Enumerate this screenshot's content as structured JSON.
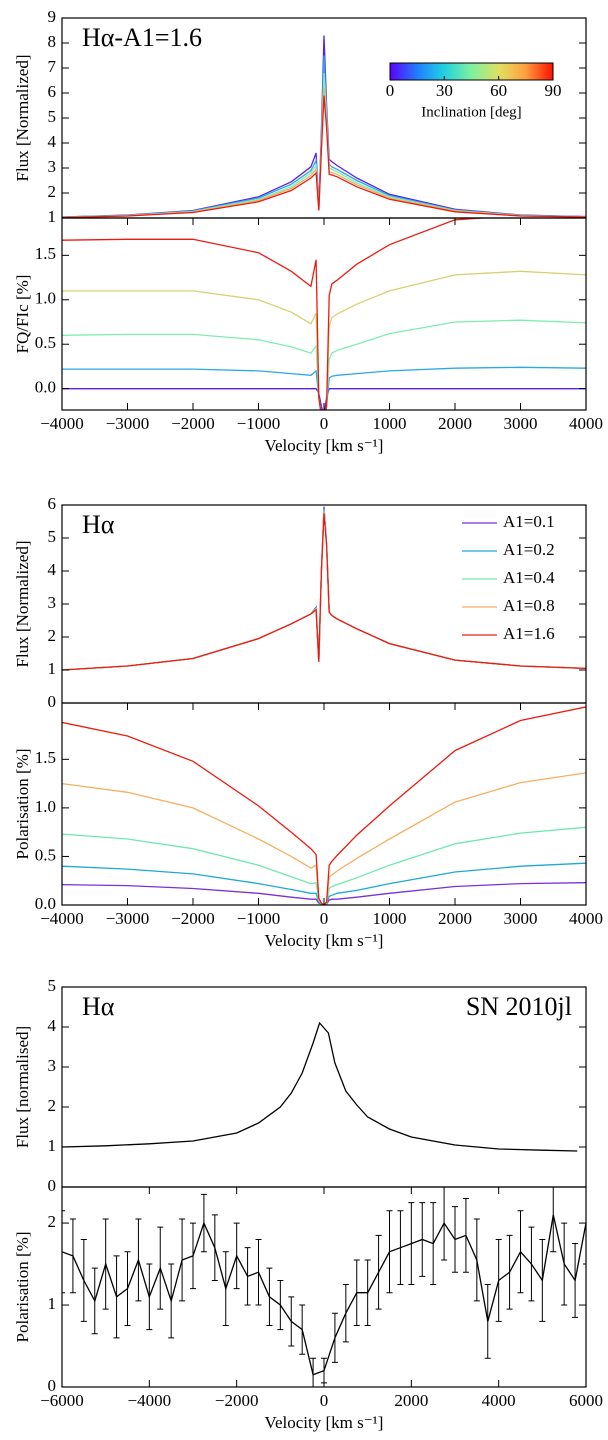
{
  "chart_data": [
    {
      "type": "line",
      "ylabel": "Flux [Normalized]",
      "annotations": [
        {
          "text": "Hα-A1=1.6",
          "loc": "upper left"
        }
      ],
      "xlim": [
        -4000,
        4000
      ],
      "ylim": [
        1,
        9
      ],
      "yticks": [
        1,
        2,
        3,
        4,
        5,
        6,
        7,
        8,
        9
      ],
      "x": [
        -4000,
        -3000,
        -2000,
        -1000,
        -500,
        -200,
        -120,
        -80,
        -40,
        0,
        40,
        80,
        120,
        200,
        500,
        1000,
        2000,
        3000,
        4000
      ],
      "series": [
        {
          "color": "#5a1ef0",
          "values": [
            1.04,
            1.12,
            1.3,
            1.85,
            2.45,
            3.05,
            3.6,
            1.4,
            4.5,
            8.3,
            5.5,
            3.35,
            3.25,
            3.1,
            2.6,
            1.95,
            1.35,
            1.12,
            1.06
          ]
        },
        {
          "color": "#2aa8e8",
          "values": [
            1.04,
            1.11,
            1.28,
            1.8,
            2.35,
            2.9,
            3.3,
            1.35,
            4.2,
            7.5,
            5.2,
            3.15,
            3.05,
            2.95,
            2.5,
            1.9,
            1.32,
            1.11,
            1.05
          ]
        },
        {
          "color": "#7eeeb0",
          "values": [
            1.03,
            1.1,
            1.26,
            1.75,
            2.25,
            2.8,
            3.1,
            1.3,
            4.0,
            6.8,
            5.0,
            3.0,
            2.95,
            2.85,
            2.4,
            1.85,
            1.3,
            1.1,
            1.05
          ]
        },
        {
          "color": "#f0b060",
          "values": [
            1.03,
            1.09,
            1.24,
            1.7,
            2.18,
            2.7,
            2.95,
            1.3,
            3.8,
            6.2,
            4.8,
            2.85,
            2.82,
            2.75,
            2.33,
            1.8,
            1.28,
            1.09,
            1.04
          ]
        },
        {
          "color": "#ee1a10",
          "values": [
            1.02,
            1.08,
            1.22,
            1.65,
            2.1,
            2.6,
            2.8,
            1.3,
            3.7,
            5.9,
            4.6,
            2.75,
            2.72,
            2.65,
            2.25,
            1.75,
            1.25,
            1.08,
            1.04
          ]
        }
      ],
      "colorbar": {
        "label": "Inclination [deg]",
        "lim": [
          0,
          90
        ],
        "ticks": [
          0,
          30,
          60,
          90
        ]
      }
    },
    {
      "type": "line",
      "ylabel": "FQ/FIc [%]",
      "xlabel": "Velocity [km s⁻¹]",
      "xlim": [
        -4000,
        4000
      ],
      "xticks": [
        {
          "value": -4000,
          "label": "−4000"
        },
        {
          "value": -3000,
          "label": "−3000"
        },
        {
          "value": -2000,
          "label": "−2000"
        },
        {
          "value": -1000,
          "label": "−1000"
        },
        0,
        1000,
        2000,
        3000,
        4000
      ],
      "ylim": [
        -0.24,
        1.92
      ],
      "yticks": [
        {
          "value": 0,
          "label": "0.0"
        },
        0.5,
        {
          "value": 1,
          "label": "1.0"
        },
        1.5
      ],
      "x": [
        -4000,
        -3000,
        -2000,
        -1000,
        -500,
        -200,
        -120,
        -80,
        -40,
        0,
        40,
        80,
        120,
        200,
        500,
        1000,
        2000,
        3000,
        4000
      ],
      "series": [
        {
          "color": "#5a1ef0",
          "values": [
            0.0,
            0.0,
            0.0,
            0.0,
            0.0,
            0.0,
            0.0,
            -0.05,
            -0.2,
            -0.3,
            -0.1,
            0.0,
            0.0,
            0.0,
            0.0,
            0.0,
            0.0,
            0.0,
            0.0
          ]
        },
        {
          "color": "#2aa8e8",
          "values": [
            0.22,
            0.22,
            0.22,
            0.2,
            0.17,
            0.15,
            0.2,
            -0.1,
            -0.3,
            -0.35,
            -0.2,
            0.12,
            0.14,
            0.15,
            0.17,
            0.2,
            0.23,
            0.24,
            0.23
          ]
        },
        {
          "color": "#7eeeb0",
          "values": [
            0.6,
            0.61,
            0.61,
            0.55,
            0.47,
            0.4,
            0.48,
            -0.1,
            -0.3,
            -0.35,
            -0.2,
            0.33,
            0.4,
            0.43,
            0.5,
            0.62,
            0.75,
            0.77,
            0.74
          ]
        },
        {
          "color": "#d8d070",
          "values": [
            1.1,
            1.1,
            1.1,
            1.0,
            0.86,
            0.73,
            0.85,
            -0.1,
            -0.3,
            -0.35,
            -0.2,
            0.7,
            0.8,
            0.84,
            0.95,
            1.1,
            1.28,
            1.32,
            1.28
          ]
        },
        {
          "color": "#ee1a10",
          "values": [
            1.67,
            1.68,
            1.68,
            1.53,
            1.32,
            1.15,
            1.45,
            -0.1,
            -0.3,
            -0.35,
            -0.2,
            1.05,
            1.18,
            1.22,
            1.4,
            1.62,
            1.9,
            1.95,
            1.93
          ]
        }
      ]
    },
    {
      "type": "line",
      "ylabel": "Flux [Normalized]",
      "annotations": [
        {
          "text": "Hα",
          "loc": "upper left"
        }
      ],
      "xlim": [
        -4000,
        4000
      ],
      "ylim": [
        0,
        6
      ],
      "yticks": [
        0,
        1,
        2,
        3,
        4,
        5,
        6
      ],
      "x": [
        -4000,
        -3000,
        -2000,
        -1000,
        -500,
        -200,
        -120,
        -80,
        -40,
        0,
        40,
        80,
        120,
        200,
        500,
        1000,
        2000,
        3000,
        4000
      ],
      "series": [
        {
          "name": "A1=0.1",
          "color": "#7b2fd8",
          "values": [
            1.0,
            1.12,
            1.35,
            1.95,
            2.4,
            2.7,
            2.9,
            1.25,
            4.0,
            5.95,
            4.8,
            2.75,
            2.65,
            2.55,
            2.25,
            1.8,
            1.3,
            1.12,
            1.05
          ]
        },
        {
          "name": "A1=0.2",
          "color": "#1ea8d8",
          "values": [
            1.0,
            1.12,
            1.35,
            1.95,
            2.4,
            2.7,
            2.88,
            1.25,
            4.0,
            5.9,
            4.8,
            2.75,
            2.65,
            2.55,
            2.25,
            1.8,
            1.3,
            1.12,
            1.05
          ]
        },
        {
          "name": "A1=0.4",
          "color": "#6fe8b0",
          "values": [
            1.0,
            1.12,
            1.35,
            1.95,
            2.4,
            2.7,
            2.86,
            1.25,
            4.0,
            5.85,
            4.8,
            2.75,
            2.65,
            2.55,
            2.25,
            1.8,
            1.3,
            1.12,
            1.05
          ]
        },
        {
          "name": "A1=0.8",
          "color": "#f5b060",
          "values": [
            1.0,
            1.12,
            1.35,
            1.95,
            2.4,
            2.7,
            2.84,
            1.25,
            4.0,
            5.8,
            4.8,
            2.75,
            2.65,
            2.55,
            2.25,
            1.8,
            1.3,
            1.12,
            1.05
          ]
        },
        {
          "name": "A1=1.6",
          "color": "#ee1a10",
          "values": [
            1.0,
            1.12,
            1.35,
            1.95,
            2.4,
            2.7,
            2.82,
            1.25,
            4.0,
            5.75,
            4.8,
            2.75,
            2.65,
            2.55,
            2.25,
            1.8,
            1.3,
            1.12,
            1.05
          ]
        }
      ]
    },
    {
      "type": "line",
      "ylabel": "Polarisation [%]",
      "xlabel": "Velocity [km s⁻¹]",
      "xlim": [
        -4000,
        4000
      ],
      "xticks": [
        {
          "value": -4000,
          "label": "−4000"
        },
        {
          "value": -3000,
          "label": "−3000"
        },
        {
          "value": -2000,
          "label": "−2000"
        },
        {
          "value": -1000,
          "label": "−1000"
        },
        0,
        1000,
        2000,
        3000,
        4000
      ],
      "ylim": [
        0,
        2.08
      ],
      "yticks": [
        {
          "value": 0,
          "label": "0.0"
        },
        0.5,
        {
          "value": 1,
          "label": "1.0"
        },
        1.5
      ],
      "x": [
        -4000,
        -3000,
        -2000,
        -1000,
        -500,
        -200,
        -120,
        -80,
        -40,
        0,
        40,
        80,
        120,
        200,
        500,
        1000,
        2000,
        3000,
        4000
      ],
      "series": [
        {
          "color": "#7b2fd8",
          "values": [
            0.21,
            0.2,
            0.17,
            0.12,
            0.08,
            0.06,
            0.06,
            0.02,
            0.01,
            0.0,
            0.01,
            0.05,
            0.06,
            0.06,
            0.08,
            0.12,
            0.19,
            0.22,
            0.23
          ]
        },
        {
          "color": "#1ea8d8",
          "values": [
            0.4,
            0.37,
            0.32,
            0.22,
            0.16,
            0.12,
            0.12,
            0.03,
            0.01,
            0.0,
            0.01,
            0.09,
            0.1,
            0.12,
            0.15,
            0.22,
            0.34,
            0.4,
            0.43
          ]
        },
        {
          "color": "#6fe8b0",
          "values": [
            0.73,
            0.68,
            0.58,
            0.41,
            0.29,
            0.22,
            0.23,
            0.05,
            0.01,
            0.0,
            0.02,
            0.17,
            0.19,
            0.21,
            0.28,
            0.41,
            0.63,
            0.74,
            0.8
          ]
        },
        {
          "color": "#f5b060",
          "values": [
            1.25,
            1.16,
            1.0,
            0.68,
            0.5,
            0.38,
            0.41,
            0.06,
            0.02,
            0.0,
            0.03,
            0.29,
            0.31,
            0.35,
            0.48,
            0.68,
            1.06,
            1.26,
            1.36
          ]
        },
        {
          "color": "#ee1a10",
          "values": [
            1.88,
            1.74,
            1.48,
            1.02,
            0.75,
            0.58,
            0.52,
            0.07,
            0.02,
            0.0,
            0.03,
            0.41,
            0.45,
            0.51,
            0.72,
            1.02,
            1.59,
            1.9,
            2.04
          ]
        }
      ]
    },
    {
      "type": "line",
      "ylabel": "Flux [normalised]",
      "annotations": [
        {
          "text": "Hα",
          "loc": "upper left"
        },
        {
          "text": "SN 2010jl",
          "loc": "upper right"
        }
      ],
      "xlim": [
        -6000,
        6000
      ],
      "ylim": [
        0,
        5
      ],
      "yticks": [
        0,
        1,
        2,
        3,
        4,
        5
      ],
      "x": [
        -6000,
        -5000,
        -4000,
        -3000,
        -2000,
        -1500,
        -1000,
        -750,
        -500,
        -250,
        -100,
        100,
        250,
        500,
        750,
        1000,
        1500,
        2000,
        3000,
        4000,
        5000,
        5800
      ],
      "series": [
        {
          "color": "#000000",
          "values": [
            1.0,
            1.03,
            1.08,
            1.15,
            1.35,
            1.6,
            2.0,
            2.35,
            2.85,
            3.6,
            4.1,
            3.85,
            3.1,
            2.4,
            2.05,
            1.75,
            1.45,
            1.25,
            1.05,
            0.95,
            0.92,
            0.9
          ]
        }
      ]
    },
    {
      "type": "errorbar",
      "ylabel": "Polarisation [%]",
      "xlabel": "Velocity [km s⁻¹]",
      "xlim": [
        -6000,
        6000
      ],
      "xticks": [
        {
          "value": -6000,
          "label": "−6000"
        },
        {
          "value": -4000,
          "label": "−4000"
        },
        {
          "value": -2000,
          "label": "−2000"
        },
        0,
        2000,
        4000,
        6000
      ],
      "ylim": [
        0,
        2.44
      ],
      "yticks": [
        0,
        1,
        2
      ],
      "x": [
        -6000,
        -5750,
        -5500,
        -5250,
        -5000,
        -4750,
        -4500,
        -4250,
        -4000,
        -3750,
        -3500,
        -3250,
        -3000,
        -2750,
        -2500,
        -2250,
        -2000,
        -1750,
        -1500,
        -1250,
        -1000,
        -750,
        -500,
        -250,
        0,
        250,
        500,
        750,
        1000,
        1250,
        1500,
        1750,
        2000,
        2250,
        2500,
        2750,
        3000,
        3250,
        3500,
        3750,
        4000,
        4250,
        4500,
        4750,
        5000,
        5250,
        5500,
        5750,
        6000
      ],
      "series": [
        {
          "color": "#000000",
          "values": [
            1.65,
            1.6,
            1.3,
            1.05,
            1.5,
            1.1,
            1.2,
            1.55,
            1.1,
            1.45,
            1.05,
            1.55,
            1.6,
            2.0,
            1.7,
            1.2,
            1.6,
            1.35,
            1.4,
            1.1,
            1.0,
            0.8,
            0.7,
            0.15,
            0.2,
            0.6,
            0.9,
            1.15,
            1.15,
            1.4,
            1.65,
            1.7,
            1.75,
            1.8,
            1.75,
            2.0,
            1.8,
            1.85,
            1.55,
            0.8,
            1.3,
            1.4,
            1.65,
            1.5,
            1.3,
            2.1,
            1.5,
            1.3,
            2.0
          ],
          "errors": [
            0.5,
            0.45,
            0.5,
            0.4,
            0.55,
            0.5,
            0.45,
            0.5,
            0.4,
            0.5,
            0.45,
            0.5,
            0.4,
            0.35,
            0.4,
            0.45,
            0.4,
            0.35,
            0.4,
            0.35,
            0.3,
            0.3,
            0.3,
            0.2,
            0.15,
            0.3,
            0.35,
            0.4,
            0.4,
            0.45,
            0.5,
            0.45,
            0.5,
            0.45,
            0.5,
            0.45,
            0.4,
            0.45,
            0.5,
            0.45,
            0.5,
            0.45,
            0.5,
            0.45,
            0.5,
            0.45,
            0.5,
            0.45,
            0.5
          ]
        }
      ]
    }
  ]
}
